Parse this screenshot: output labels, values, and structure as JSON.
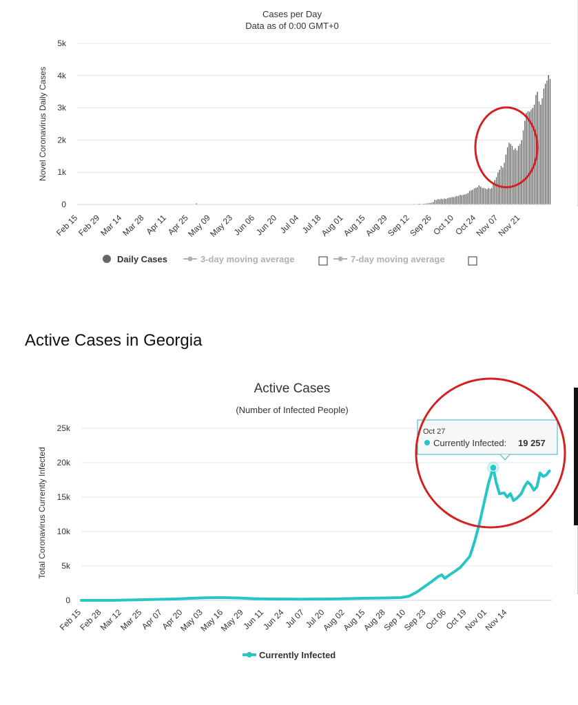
{
  "section_heading": "Active Cases in Georgia",
  "colors": {
    "bar": "#666666",
    "line": "#26c6c6",
    "annotation": "#d42020",
    "grid": "#e6e6e6",
    "legend_inactive": "#b0b0b0",
    "tooltip_border": "#33b5bd"
  },
  "chart_data": [
    {
      "type": "bar",
      "title": "Cases per Day",
      "subtitle": "Data as of 0:00 GMT+0",
      "xlabel": "",
      "ylabel": "Novel Coronavirus Daily Cases",
      "ylim": [
        0,
        5000
      ],
      "yticks": [
        "0",
        "1k",
        "2k",
        "3k",
        "4k",
        "5k"
      ],
      "x_tick_labels": [
        "Feb 15",
        "Feb 29",
        "Mar 14",
        "Mar 28",
        "Apr 11",
        "Apr 25",
        "May 09",
        "May 23",
        "Jun 06",
        "Jun 20",
        "Jul 04",
        "Jul 18",
        "Aug 01",
        "Aug 15",
        "Aug 29",
        "Sep 12",
        "Sep 26",
        "Oct 10",
        "Oct 24",
        "Nov 07",
        "Nov 21"
      ],
      "start_date": "Feb 15",
      "legend": [
        {
          "label": "Daily Cases",
          "active": true
        },
        {
          "label": "3-day moving average",
          "active": false
        },
        {
          "label": "7-day moving average",
          "active": false
        }
      ],
      "series": [
        {
          "name": "Daily Cases",
          "values": [
            0,
            0,
            0,
            0,
            0,
            0,
            0,
            0,
            0,
            0,
            0,
            0,
            0,
            0,
            0,
            0,
            0,
            0,
            0,
            0,
            0,
            0,
            0,
            0,
            0,
            0,
            0,
            0,
            0,
            0,
            0,
            0,
            0,
            0,
            0,
            0,
            0,
            0,
            0,
            0,
            0,
            0,
            0,
            0,
            0,
            0,
            0,
            0,
            0,
            0,
            0,
            0,
            0,
            0,
            0,
            0,
            0,
            0,
            0,
            0,
            0,
            0,
            0,
            0,
            0,
            0,
            0,
            0,
            0,
            0,
            0,
            0,
            0,
            0,
            0,
            40,
            0,
            0,
            0,
            0,
            0,
            0,
            0,
            0,
            0,
            0,
            0,
            0,
            0,
            0,
            0,
            0,
            0,
            0,
            0,
            0,
            0,
            0,
            0,
            0,
            0,
            0,
            0,
            0,
            0,
            0,
            0,
            0,
            0,
            0,
            0,
            0,
            0,
            0,
            0,
            0,
            0,
            0,
            0,
            0,
            0,
            0,
            0,
            0,
            0,
            0,
            0,
            0,
            0,
            0,
            0,
            0,
            0,
            0,
            0,
            0,
            0,
            0,
            0,
            0,
            0,
            0,
            0,
            0,
            0,
            0,
            0,
            0,
            0,
            0,
            0,
            0,
            0,
            0,
            0,
            0,
            0,
            0,
            0,
            0,
            0,
            0,
            0,
            0,
            0,
            0,
            0,
            0,
            0,
            0,
            0,
            0,
            0,
            0,
            0,
            0,
            0,
            0,
            0,
            0,
            0,
            0,
            0,
            0,
            0,
            0,
            0,
            0,
            0,
            0,
            0,
            0,
            0,
            0,
            0,
            0,
            0,
            0,
            0,
            0,
            0,
            0,
            0,
            0,
            0,
            0,
            0,
            0,
            0,
            0,
            0,
            0,
            10,
            20,
            10,
            15,
            30,
            20,
            10,
            25,
            30,
            40,
            35,
            50,
            60,
            80,
            150,
            140,
            170,
            160,
            180,
            165,
            190,
            175,
            200,
            210,
            220,
            235,
            225,
            250,
            265,
            270,
            300,
            290,
            305,
            310,
            330,
            360,
            420,
            440,
            460,
            500,
            520,
            540,
            600,
            560,
            520,
            510,
            500,
            480,
            520,
            490,
            510,
            640,
            760,
            850,
            1000,
            1080,
            1200,
            1150,
            1300,
            1550,
            1780,
            1920,
            1880,
            1820,
            1700,
            1750,
            1680,
            1820,
            1880,
            2000,
            2300,
            2600,
            2850,
            2900,
            2880,
            2950,
            3000,
            3100,
            3400,
            3500,
            3200,
            3100,
            3300,
            3600,
            3750,
            3850,
            4020,
            3900
          ]
        }
      ],
      "annotation": "red circle around late October bars"
    },
    {
      "type": "line",
      "title": "Active Cases",
      "subtitle": "(Number of Infected People)",
      "xlabel": "",
      "ylabel": "Total Coronavirus Currently Infected",
      "ylim": [
        0,
        25000
      ],
      "yticks": [
        "0",
        "5k",
        "10k",
        "15k",
        "20k",
        "25k"
      ],
      "x_tick_labels": [
        "Feb 15",
        "Feb 28",
        "Mar 12",
        "Mar 25",
        "Apr 07",
        "Apr 20",
        "May 03",
        "May 16",
        "May 29",
        "Jun 11",
        "Jun 24",
        "Jul 07",
        "Jul 20",
        "Aug 02",
        "Aug 15",
        "Aug 28",
        "Sep 10",
        "Sep 23",
        "Oct 06",
        "Oct 19",
        "Nov 01",
        "Nov 14"
      ],
      "start_date": "Feb 15",
      "legend": [
        {
          "label": "Currently Infected",
          "active": true
        }
      ],
      "series": [
        {
          "name": "Currently Infected",
          "points": [
            {
              "day": 0,
              "value": 0
            },
            {
              "day": 20,
              "value": 0
            },
            {
              "day": 40,
              "value": 100
            },
            {
              "day": 60,
              "value": 200
            },
            {
              "day": 70,
              "value": 300
            },
            {
              "day": 80,
              "value": 380
            },
            {
              "day": 90,
              "value": 400
            },
            {
              "day": 100,
              "value": 350
            },
            {
              "day": 110,
              "value": 250
            },
            {
              "day": 120,
              "value": 200
            },
            {
              "day": 140,
              "value": 180
            },
            {
              "day": 160,
              "value": 200
            },
            {
              "day": 180,
              "value": 300
            },
            {
              "day": 195,
              "value": 350
            },
            {
              "day": 205,
              "value": 400
            },
            {
              "day": 210,
              "value": 600
            },
            {
              "day": 215,
              "value": 1200
            },
            {
              "day": 220,
              "value": 2000
            },
            {
              "day": 225,
              "value": 2800
            },
            {
              "day": 229,
              "value": 3500
            },
            {
              "day": 231,
              "value": 3700
            },
            {
              "day": 233,
              "value": 3200
            },
            {
              "day": 236,
              "value": 3700
            },
            {
              "day": 240,
              "value": 4300
            },
            {
              "day": 243,
              "value": 4800
            },
            {
              "day": 246,
              "value": 5600
            },
            {
              "day": 249,
              "value": 6400
            },
            {
              "day": 252,
              "value": 8500
            },
            {
              "day": 255,
              "value": 11000
            },
            {
              "day": 258,
              "value": 14000
            },
            {
              "day": 261,
              "value": 17000
            },
            {
              "day": 264,
              "value": 19257
            },
            {
              "day": 266,
              "value": 17000
            },
            {
              "day": 268,
              "value": 15500
            },
            {
              "day": 271,
              "value": 15600
            },
            {
              "day": 273,
              "value": 15000
            },
            {
              "day": 275,
              "value": 15500
            },
            {
              "day": 277,
              "value": 14500
            },
            {
              "day": 279,
              "value": 14800
            },
            {
              "day": 282,
              "value": 15500
            },
            {
              "day": 284,
              "value": 16500
            },
            {
              "day": 286,
              "value": 17200
            },
            {
              "day": 288,
              "value": 16800
            },
            {
              "day": 290,
              "value": 16000
            },
            {
              "day": 292,
              "value": 16500
            },
            {
              "day": 294,
              "value": 18500
            },
            {
              "day": 296,
              "value": 18000
            },
            {
              "day": 298,
              "value": 18200
            },
            {
              "day": 300,
              "value": 18800
            }
          ]
        }
      ],
      "tooltip": {
        "date": "Oct 27",
        "label": "Currently Infected:",
        "value": "19 257",
        "day": 264,
        "point_value": 19257
      },
      "annotation": "red circle around tooltip and peak"
    }
  ]
}
